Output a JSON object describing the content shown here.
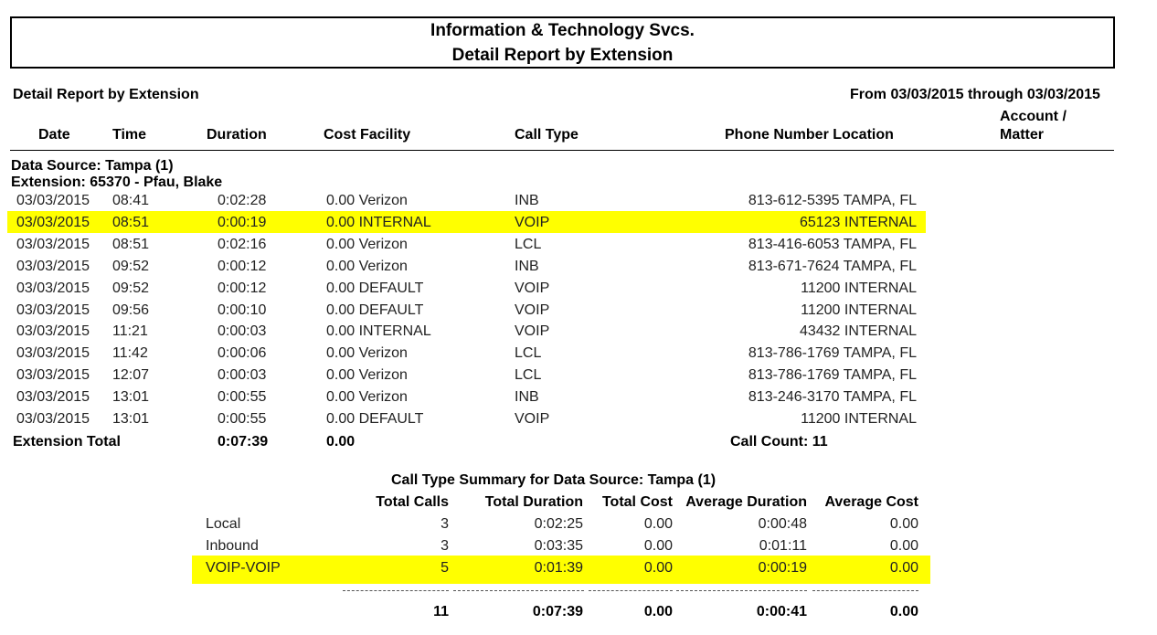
{
  "report": {
    "org_title": "Information & Technology Svcs.",
    "report_title": "Detail Report by Extension",
    "sub_title": "Detail Report by Extension",
    "date_range": "From 03/03/2015 through 03/03/2015"
  },
  "columns": {
    "date": "Date",
    "time": "Time",
    "duration": "Duration",
    "cost_facility": "Cost Facility",
    "call_type": "Call Type",
    "phone_location": "Phone Number Location",
    "account_1": "Account /",
    "account_2": "Matter"
  },
  "source": {
    "data_source": "Data Source: Tampa (1)",
    "extension": "Extension: 65370 - Pfau, Blake"
  },
  "rows": [
    {
      "date": "03/03/2015",
      "time": "08:41",
      "duration": "0:02:28",
      "cost_facility": "0.00 Verizon",
      "call_type": "INB",
      "phone_location": "813-612-5395 TAMPA, FL"
    },
    {
      "date": "03/03/2015",
      "time": "08:51",
      "duration": "0:00:19",
      "cost_facility": "0.00 INTERNAL",
      "call_type": "VOIP",
      "phone_location": "65123 INTERNAL"
    },
    {
      "date": "03/03/2015",
      "time": "08:51",
      "duration": "0:02:16",
      "cost_facility": "0.00 Verizon",
      "call_type": "LCL",
      "phone_location": "813-416-6053 TAMPA, FL"
    },
    {
      "date": "03/03/2015",
      "time": "09:52",
      "duration": "0:00:12",
      "cost_facility": "0.00 Verizon",
      "call_type": "INB",
      "phone_location": "813-671-7624 TAMPA, FL"
    },
    {
      "date": "03/03/2015",
      "time": "09:52",
      "duration": "0:00:12",
      "cost_facility": "0.00 DEFAULT",
      "call_type": "VOIP",
      "phone_location": "11200 INTERNAL"
    },
    {
      "date": "03/03/2015",
      "time": "09:56",
      "duration": "0:00:10",
      "cost_facility": "0.00 DEFAULT",
      "call_type": "VOIP",
      "phone_location": "11200 INTERNAL"
    },
    {
      "date": "03/03/2015",
      "time": "11:21",
      "duration": "0:00:03",
      "cost_facility": "0.00 INTERNAL",
      "call_type": "VOIP",
      "phone_location": "43432 INTERNAL"
    },
    {
      "date": "03/03/2015",
      "time": "11:42",
      "duration": "0:00:06",
      "cost_facility": "0.00 Verizon",
      "call_type": "LCL",
      "phone_location": "813-786-1769 TAMPA, FL"
    },
    {
      "date": "03/03/2015",
      "time": "12:07",
      "duration": "0:00:03",
      "cost_facility": "0.00 Verizon",
      "call_type": "LCL",
      "phone_location": "813-786-1769 TAMPA, FL"
    },
    {
      "date": "03/03/2015",
      "time": "13:01",
      "duration": "0:00:55",
      "cost_facility": "0.00 Verizon",
      "call_type": "INB",
      "phone_location": "813-246-3170 TAMPA, FL"
    },
    {
      "date": "03/03/2015",
      "time": "13:01",
      "duration": "0:00:55",
      "cost_facility": "0.00 DEFAULT",
      "call_type": "VOIP",
      "phone_location": "11200 INTERNAL"
    }
  ],
  "extension_total": {
    "label": "Extension Total",
    "duration": "0:07:39",
    "cost": "0.00",
    "call_count": "Call Count: 11"
  },
  "summary": {
    "title": "Call Type Summary for Data Source: Tampa (1)",
    "headers": {
      "total_calls": "Total Calls",
      "total_duration": "Total Duration",
      "total_cost": "Total Cost",
      "avg_duration": "Average Duration",
      "avg_cost": "Average Cost"
    },
    "rows": [
      {
        "label": "Local",
        "total_calls": "3",
        "total_duration": "0:02:25",
        "total_cost": "0.00",
        "avg_duration": "0:00:48",
        "avg_cost": "0.00"
      },
      {
        "label": "Inbound",
        "total_calls": "3",
        "total_duration": "0:03:35",
        "total_cost": "0.00",
        "avg_duration": "0:01:11",
        "avg_cost": "0.00"
      },
      {
        "label": "VOIP-VOIP",
        "total_calls": "5",
        "total_duration": "0:01:39",
        "total_cost": "0.00",
        "avg_duration": "0:00:19",
        "avg_cost": "0.00"
      }
    ],
    "totals": {
      "total_calls": "11",
      "total_duration": "0:07:39",
      "total_cost": "0.00",
      "avg_duration": "0:00:41",
      "avg_cost": "0.00"
    }
  },
  "highlight_color": "#ffff00"
}
